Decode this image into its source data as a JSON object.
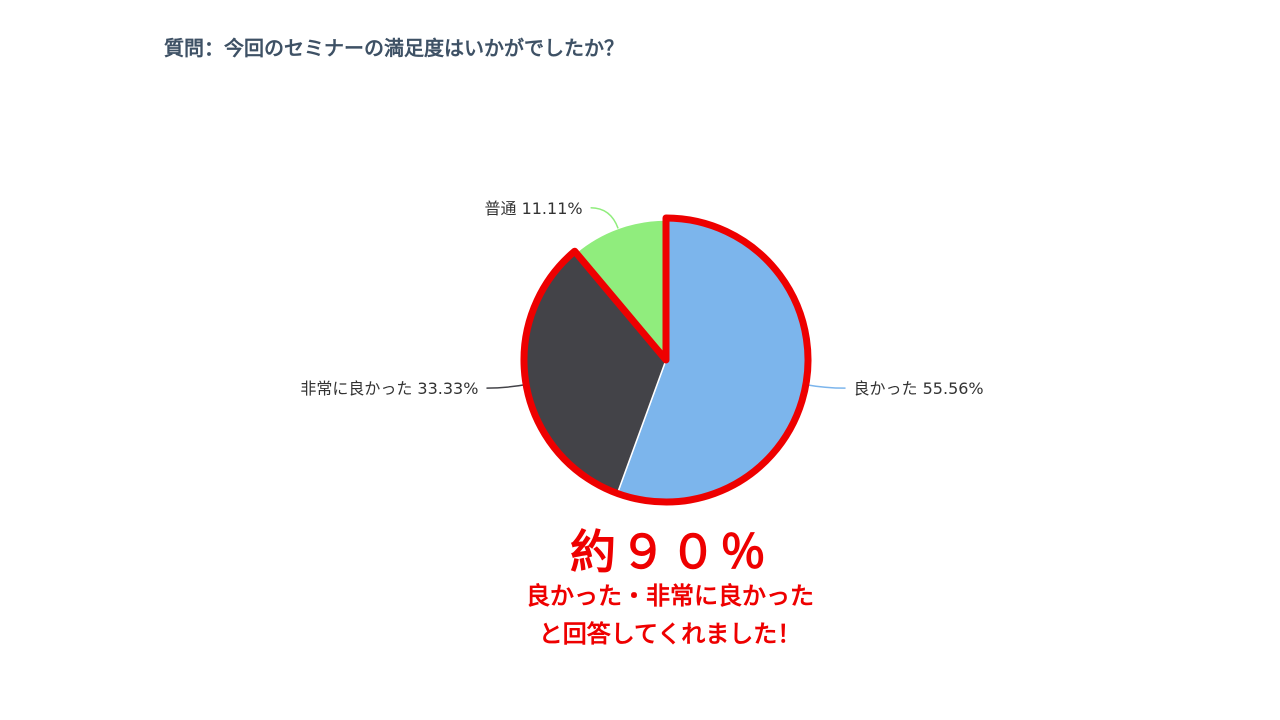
{
  "question": "質問：今回のセミナーの満足度はいかがでしたか？",
  "chart_data": {
    "type": "pie",
    "slices": [
      {
        "name": "良かった",
        "value": 55.56,
        "label": "良かった 55.56%",
        "color": "#7cb5ec"
      },
      {
        "name": "非常に良かった",
        "value": 33.33,
        "label": "非常に良かった 33.33%",
        "color": "#434348"
      },
      {
        "name": "普通",
        "value": 11.11,
        "label": "普通 11.11%",
        "color": "#90ed7d"
      }
    ],
    "highlight": {
      "slices": [
        "良かった",
        "非常に良かった"
      ],
      "outline_color": "#ee0000"
    }
  },
  "callout": {
    "big": "約９０％",
    "line1": "良かった・非常に良かった",
    "line2": "と回答してくれました！"
  }
}
